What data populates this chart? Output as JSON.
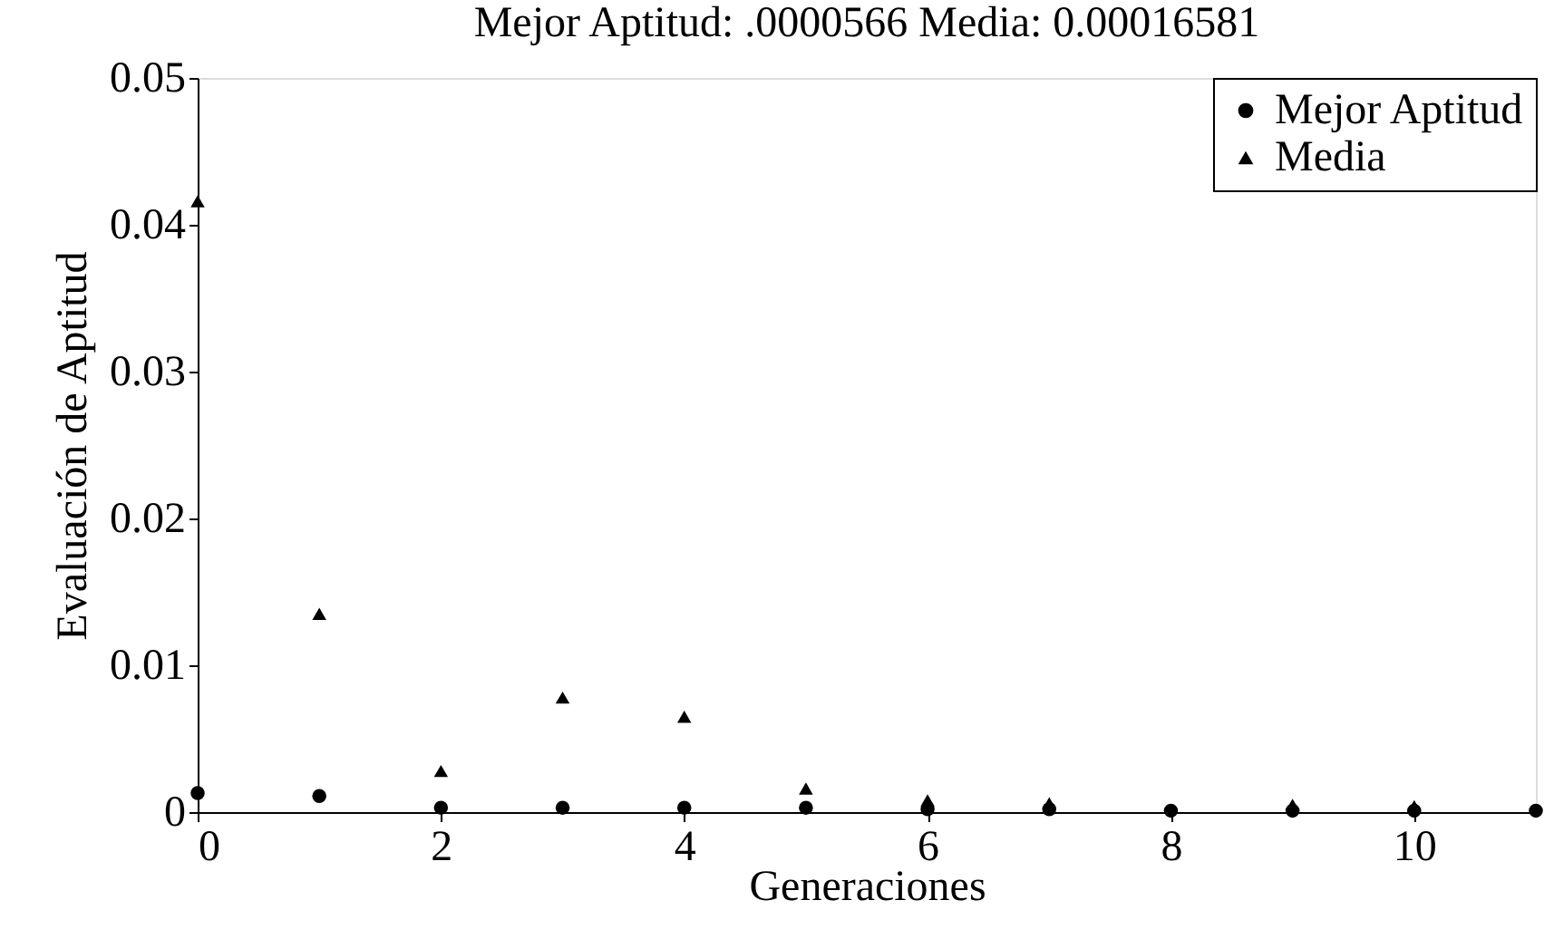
{
  "chart_data": {
    "type": "scatter",
    "title": "Mejor Aptitud: .0000566 Media: 0.00016581",
    "xlabel": "Generaciones",
    "ylabel": "Evaluación de Aptitud",
    "x": [
      0,
      1,
      2,
      3,
      4,
      5,
      6,
      7,
      8,
      9,
      10,
      11
    ],
    "series": [
      {
        "name": "Mejor Aptitud",
        "color": "#000000",
        "marker": "circle",
        "values": [
          0.0013,
          0.0011,
          0.0003,
          0.0003,
          0.0003,
          0.0003,
          0.0002,
          0.0002,
          0.0001,
          0.0001,
          0.0001,
          0.0001
        ]
      },
      {
        "name": "Media",
        "color": "#000000",
        "marker": "triangle",
        "values": [
          0.0416,
          0.0135,
          0.0028,
          0.0078,
          0.0065,
          0.0016,
          0.0008,
          0.0006,
          null,
          0.0005,
          0.0004,
          null
        ]
      }
    ],
    "xlim": [
      0,
      11
    ],
    "xticks": [
      0,
      2,
      4,
      6,
      8,
      10
    ],
    "ylim": [
      0,
      0.05
    ],
    "yticks": [
      0,
      0.01,
      0.02,
      0.03,
      0.04,
      0.05
    ],
    "grid": false,
    "legend": "top right"
  }
}
